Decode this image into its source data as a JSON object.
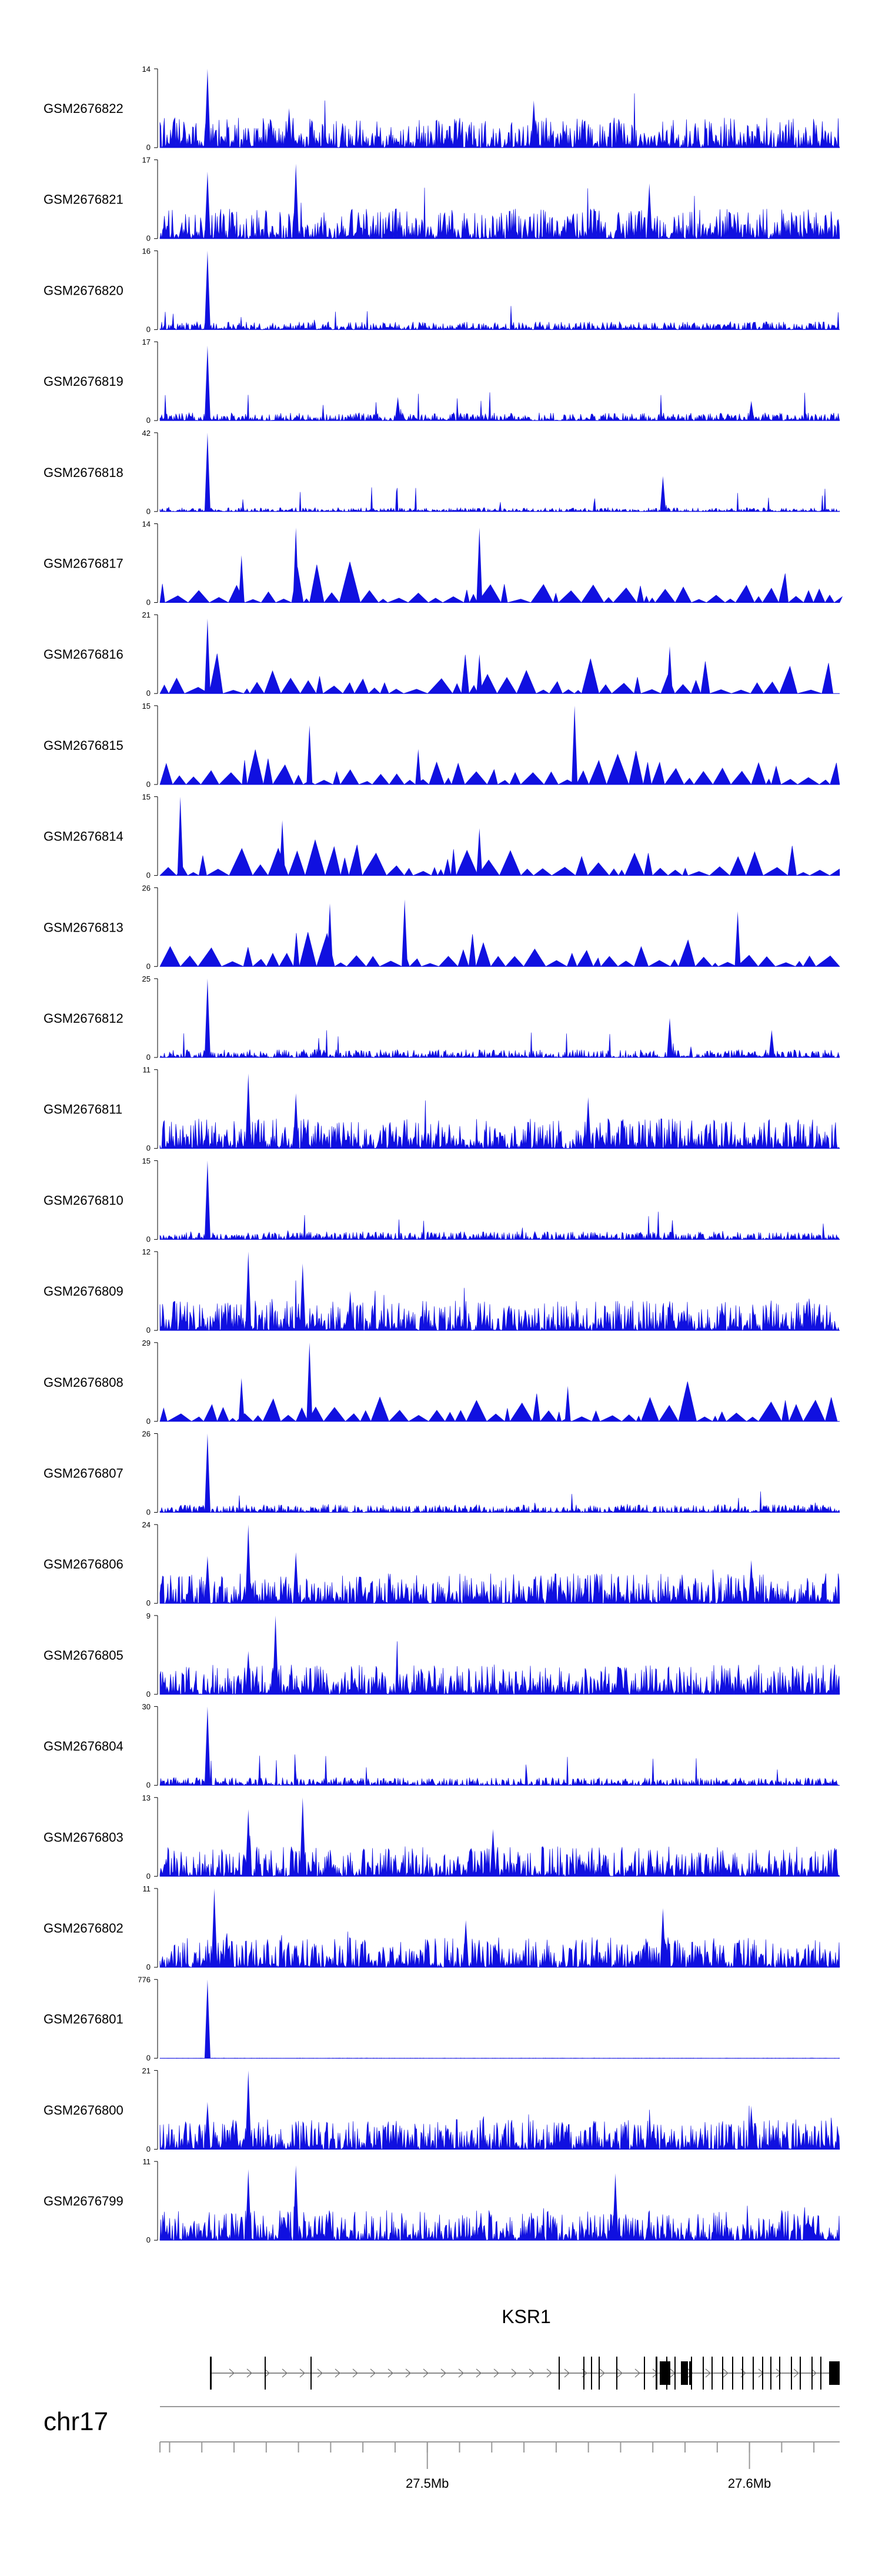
{
  "chart_data": {
    "type": "area",
    "title": "",
    "chromosome": "chr17",
    "gene": {
      "name": "KSR1",
      "strand": "+"
    },
    "x_axis": {
      "unit": "Mb",
      "range": [
        27.417,
        27.628
      ],
      "ticks": [
        {
          "value": 27.5,
          "label": "27.5Mb"
        },
        {
          "value": 27.6,
          "label": "27.6Mb"
        }
      ]
    },
    "ylim_min": 0,
    "color": "#1010e0",
    "tracks": [
      {
        "name": "GSM2676822",
        "max": 14,
        "profile": "dense",
        "seed": 11,
        "peaks": [
          [
            0.07,
            1.0
          ],
          [
            0.55,
            0.6
          ],
          [
            0.19,
            0.5
          ]
        ]
      },
      {
        "name": "GSM2676821",
        "max": 17,
        "profile": "dense",
        "seed": 12,
        "peaks": [
          [
            0.07,
            0.85
          ],
          [
            0.2,
            0.95
          ],
          [
            0.72,
            0.7
          ]
        ]
      },
      {
        "name": "GSM2676820",
        "max": 16,
        "profile": "low",
        "seed": 13,
        "peaks": [
          [
            0.07,
            1.0
          ]
        ]
      },
      {
        "name": "GSM2676819",
        "max": 17,
        "profile": "low",
        "seed": 14,
        "peaks": [
          [
            0.07,
            0.95
          ],
          [
            0.35,
            0.3
          ],
          [
            0.87,
            0.25
          ]
        ]
      },
      {
        "name": "GSM2676818",
        "max": 42,
        "profile": "sparse",
        "seed": 15,
        "peaks": [
          [
            0.07,
            1.0
          ],
          [
            0.74,
            0.45
          ]
        ]
      },
      {
        "name": "GSM2676817",
        "max": 14,
        "profile": "tri",
        "seed": 16,
        "peaks": [
          [
            0.2,
            0.95
          ],
          [
            0.47,
            0.95
          ],
          [
            0.12,
            0.6
          ]
        ]
      },
      {
        "name": "GSM2676816",
        "max": 21,
        "profile": "tri",
        "seed": 17,
        "peaks": [
          [
            0.07,
            0.95
          ],
          [
            0.75,
            0.6
          ],
          [
            0.47,
            0.5
          ]
        ]
      },
      {
        "name": "GSM2676815",
        "max": 15,
        "profile": "tri",
        "seed": 18,
        "peaks": [
          [
            0.22,
            0.75
          ],
          [
            0.61,
            1.0
          ],
          [
            0.38,
            0.45
          ]
        ]
      },
      {
        "name": "GSM2676814",
        "max": 15,
        "profile": "tri",
        "seed": 19,
        "peaks": [
          [
            0.03,
            1.0
          ],
          [
            0.18,
            0.7
          ],
          [
            0.47,
            0.6
          ]
        ]
      },
      {
        "name": "GSM2676813",
        "max": 26,
        "profile": "tri",
        "seed": 20,
        "peaks": [
          [
            0.25,
            0.8
          ],
          [
            0.36,
            0.85
          ],
          [
            0.85,
            0.7
          ]
        ]
      },
      {
        "name": "GSM2676812",
        "max": 25,
        "profile": "low",
        "seed": 21,
        "peaks": [
          [
            0.07,
            1.0
          ],
          [
            0.75,
            0.5
          ],
          [
            0.9,
            0.35
          ]
        ]
      },
      {
        "name": "GSM2676811",
        "max": 11,
        "profile": "dense",
        "seed": 22,
        "peaks": [
          [
            0.13,
            0.95
          ],
          [
            0.2,
            0.7
          ],
          [
            0.63,
            0.65
          ]
        ]
      },
      {
        "name": "GSM2676810",
        "max": 15,
        "profile": "low",
        "seed": 23,
        "peaks": [
          [
            0.07,
            1.0
          ]
        ]
      },
      {
        "name": "GSM2676809",
        "max": 12,
        "profile": "dense",
        "seed": 24,
        "peaks": [
          [
            0.13,
            1.0
          ],
          [
            0.21,
            0.85
          ],
          [
            0.28,
            0.5
          ]
        ]
      },
      {
        "name": "GSM2676808",
        "max": 29,
        "profile": "tri",
        "seed": 25,
        "peaks": [
          [
            0.22,
            1.0
          ],
          [
            0.12,
            0.55
          ],
          [
            0.6,
            0.45
          ]
        ]
      },
      {
        "name": "GSM2676807",
        "max": 26,
        "profile": "low",
        "seed": 26,
        "peaks": [
          [
            0.07,
            1.0
          ]
        ]
      },
      {
        "name": "GSM2676806",
        "max": 24,
        "profile": "dense",
        "seed": 27,
        "peaks": [
          [
            0.13,
            1.0
          ],
          [
            0.07,
            0.6
          ],
          [
            0.2,
            0.65
          ],
          [
            0.87,
            0.55
          ]
        ]
      },
      {
        "name": "GSM2676805",
        "max": 9,
        "profile": "dense",
        "seed": 28,
        "peaks": [
          [
            0.17,
            1.0
          ],
          [
            0.13,
            0.55
          ]
        ]
      },
      {
        "name": "GSM2676804",
        "max": 30,
        "profile": "low",
        "seed": 29,
        "peaks": [
          [
            0.07,
            1.0
          ]
        ]
      },
      {
        "name": "GSM2676803",
        "max": 13,
        "profile": "dense",
        "seed": 30,
        "peaks": [
          [
            0.13,
            0.85
          ],
          [
            0.21,
            1.0
          ],
          [
            0.49,
            0.6
          ]
        ]
      },
      {
        "name": "GSM2676802",
        "max": 11,
        "profile": "dense",
        "seed": 31,
        "peaks": [
          [
            0.08,
            1.0
          ],
          [
            0.74,
            0.75
          ],
          [
            0.45,
            0.6
          ]
        ]
      },
      {
        "name": "GSM2676801",
        "max": 776,
        "profile": "flat",
        "seed": 32,
        "peaks": [
          [
            0.07,
            1.0
          ]
        ]
      },
      {
        "name": "GSM2676800",
        "max": 21,
        "profile": "dense",
        "seed": 33,
        "peaks": [
          [
            0.13,
            1.0
          ],
          [
            0.07,
            0.6
          ],
          [
            0.87,
            0.55
          ]
        ]
      },
      {
        "name": "GSM2676799",
        "max": 11,
        "profile": "dense",
        "seed": 34,
        "peaks": [
          [
            0.13,
            0.9
          ],
          [
            0.2,
            0.95
          ],
          [
            0.67,
            0.85
          ]
        ]
      }
    ]
  }
}
